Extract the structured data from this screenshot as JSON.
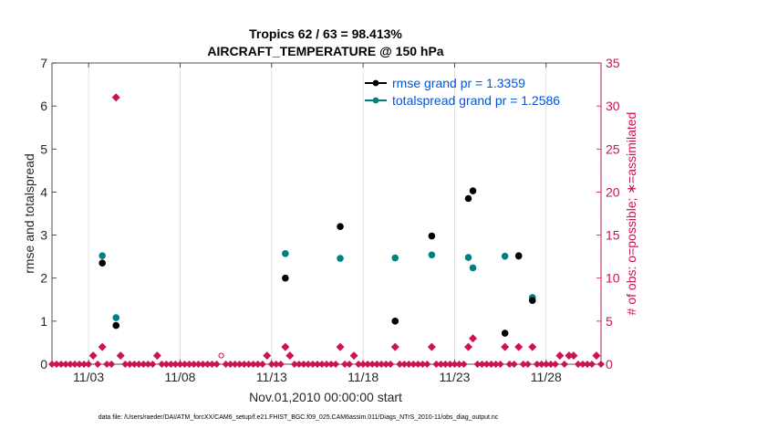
{
  "chart_data": {
    "type": "scatter",
    "title": [
      "Tropics 62 / 63 = 98.413%",
      "AIRCRAFT_TEMPERATURE @ 150 hPa"
    ],
    "xlabel": "Nov.01,2010 00:00:00 start",
    "ylabel_left": "rmse and totalspread",
    "ylabel_right": "# of obs: o=possible; ∗=assimilated",
    "xlim": [
      0,
      30
    ],
    "ylim_left": [
      0,
      7
    ],
    "ylim_right": [
      0,
      35
    ],
    "x_ticks": [
      2,
      7,
      12,
      17,
      22,
      27
    ],
    "x_tick_labels": [
      "11/03",
      "11/08",
      "11/13",
      "11/18",
      "11/23",
      "11/28"
    ],
    "y_ticks_left": [
      0,
      1,
      2,
      3,
      4,
      5,
      6,
      7
    ],
    "y_ticks_right": [
      0,
      5,
      10,
      15,
      20,
      25,
      30,
      35
    ],
    "grid_x": true,
    "legend_position": "top-right",
    "footer": "data file: /Users/raeder/DAI/ATM_forcXX/CAM6_setup/f.e21.FHIST_BGC.f09_025.CAM6assim.011/Diags_NTrS_2010-11/obs_diag_output.nc",
    "series": [
      {
        "name": "rmse grand pr = 1.3359",
        "axis": "left",
        "color": "#000000",
        "points": [
          [
            2.75,
            2.35
          ],
          [
            3.5,
            0.9
          ],
          [
            12.75,
            2.0
          ],
          [
            15.75,
            3.2
          ],
          [
            18.75,
            1.0
          ],
          [
            20.75,
            2.98
          ],
          [
            22.75,
            3.85
          ],
          [
            23.0,
            4.03
          ],
          [
            24.75,
            0.72
          ],
          [
            25.5,
            2.52
          ],
          [
            26.25,
            1.48
          ]
        ]
      },
      {
        "name": "totalspread grand pr = 1.2586",
        "axis": "left",
        "color": "#008080",
        "points": [
          [
            2.75,
            2.52
          ],
          [
            3.5,
            1.08
          ],
          [
            12.75,
            2.57
          ],
          [
            15.75,
            2.46
          ],
          [
            18.75,
            2.47
          ],
          [
            20.75,
            2.54
          ],
          [
            22.75,
            2.48
          ],
          [
            23.0,
            2.24
          ],
          [
            24.75,
            2.51
          ],
          [
            25.5,
            2.51
          ],
          [
            26.25,
            1.55
          ]
        ]
      },
      {
        "name": "obs possible",
        "axis": "right",
        "color": "#cc1155",
        "points": [
          [
            2.25,
            1
          ],
          [
            2.75,
            2
          ],
          [
            3.5,
            31
          ],
          [
            3.75,
            1
          ],
          [
            5.75,
            1
          ],
          [
            9.25,
            1
          ],
          [
            11.75,
            1
          ],
          [
            12.75,
            2
          ],
          [
            13.0,
            1
          ],
          [
            15.75,
            2
          ],
          [
            16.5,
            1
          ],
          [
            18.75,
            2
          ],
          [
            20.75,
            2
          ],
          [
            22.75,
            2
          ],
          [
            23.0,
            3
          ],
          [
            24.75,
            2
          ],
          [
            25.5,
            2
          ],
          [
            26.25,
            2
          ],
          [
            27.75,
            1
          ],
          [
            28.25,
            1
          ],
          [
            28.5,
            1
          ],
          [
            29.75,
            1
          ]
        ]
      },
      {
        "name": "obs assimilated",
        "axis": "right",
        "color": "#cc1155",
        "points": [
          [
            2.25,
            1
          ],
          [
            2.75,
            2
          ],
          [
            3.5,
            31
          ],
          [
            3.75,
            1
          ],
          [
            5.75,
            1
          ],
          [
            11.75,
            1
          ],
          [
            12.75,
            2
          ],
          [
            13.0,
            1
          ],
          [
            15.75,
            2
          ],
          [
            16.5,
            1
          ],
          [
            18.75,
            2
          ],
          [
            20.75,
            2
          ],
          [
            22.75,
            2
          ],
          [
            23.0,
            3
          ],
          [
            24.75,
            2
          ],
          [
            25.5,
            2
          ],
          [
            26.25,
            2
          ],
          [
            27.75,
            1
          ],
          [
            28.25,
            1
          ],
          [
            28.5,
            1
          ],
          [
            29.75,
            1
          ]
        ]
      }
    ]
  },
  "colors": {
    "left_axis": "#000000",
    "right_axis": "#cc1155",
    "legend_text": "#0055dd",
    "grid": "#d9d9d9"
  }
}
